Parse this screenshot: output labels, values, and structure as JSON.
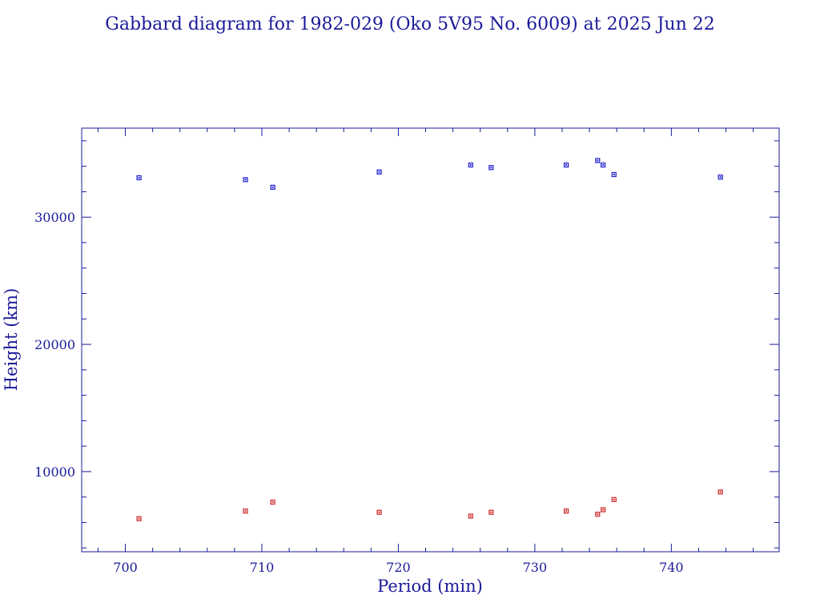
{
  "chart_data": {
    "type": "scatter",
    "title": "Gabbard diagram for 1982-029 (Oko 5V95 No. 6009) at 2025 Jun 22",
    "xlabel": "Period (min)",
    "ylabel": "Height (km)",
    "xlim": [
      696.8,
      747.9
    ],
    "ylim": [
      3700,
      37000
    ],
    "x_ticks": [
      700,
      710,
      720,
      730,
      740
    ],
    "x_tick_labels": [
      "700",
      "710",
      "720",
      "730",
      "740"
    ],
    "x_minor_step": 2,
    "y_ticks": [
      10000,
      20000,
      30000
    ],
    "y_tick_labels": [
      "10000",
      "20000",
      "30000"
    ],
    "y_minor_step": 2000,
    "grid": false,
    "colors": {
      "axis": "#1a1a99",
      "apogee": "#1a1acc",
      "perigee": "#cc2222"
    },
    "series": [
      {
        "key": "apogee",
        "color": "#1a1acc",
        "points": [
          [
            701.0,
            33100
          ],
          [
            708.8,
            32950
          ],
          [
            710.8,
            32350
          ],
          [
            718.6,
            33550
          ],
          [
            725.3,
            34100
          ],
          [
            726.8,
            33900
          ],
          [
            732.3,
            34100
          ],
          [
            734.6,
            34450
          ],
          [
            735.0,
            34100
          ],
          [
            735.8,
            33350
          ],
          [
            743.6,
            33150
          ]
        ]
      },
      {
        "key": "perigee",
        "color": "#cc2222",
        "points": [
          [
            701.0,
            6300
          ],
          [
            708.8,
            6900
          ],
          [
            710.8,
            7600
          ],
          [
            718.6,
            6800
          ],
          [
            725.3,
            6500
          ],
          [
            726.8,
            6800
          ],
          [
            732.3,
            6900
          ],
          [
            734.6,
            6650
          ],
          [
            735.0,
            7000
          ],
          [
            735.8,
            7800
          ],
          [
            743.6,
            8400
          ]
        ]
      }
    ]
  }
}
